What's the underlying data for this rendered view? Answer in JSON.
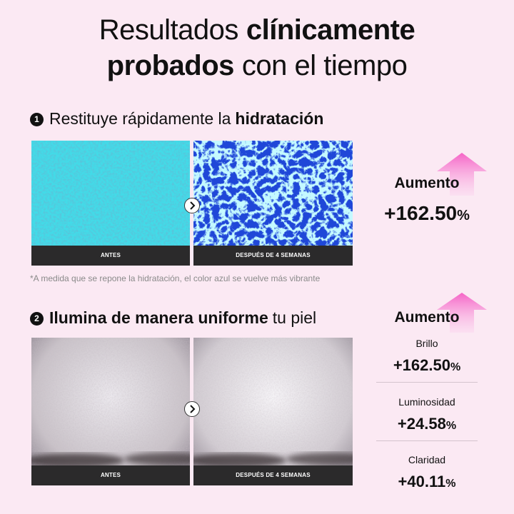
{
  "header": {
    "title_line1_regular": "Resultados",
    "title_line1_bold": "clínicamente",
    "title_line2_bold": "probados",
    "title_line2_regular": "con el tiempo"
  },
  "sections": [
    {
      "number": "1",
      "heading_regular": "Restituye rápidamente la",
      "heading_bold": "hidratación",
      "before_label": "ANTES",
      "after_label": "DESPUÉS DE 4 SEMANAS",
      "result_label": "Aumento",
      "result_value": "+162.50",
      "result_unit": "%",
      "note": "*A medida que se repone la hidratación, el color azul se vuelve más vibrante"
    },
    {
      "number": "2",
      "heading_bold": "Ilumina de manera uniforme",
      "heading_regular": "tu piel",
      "before_label": "ANTES",
      "after_label": "DESPUÉS DE 4 SEMANAS",
      "result_label": "Aumento",
      "metrics": [
        {
          "name": "Brillo",
          "value": "+162.50",
          "unit": "%"
        },
        {
          "name": "Luminosidad",
          "value": "+24.58",
          "unit": "%"
        },
        {
          "name": "Claridad",
          "value": "+40.11",
          "unit": "%"
        }
      ]
    }
  ]
}
